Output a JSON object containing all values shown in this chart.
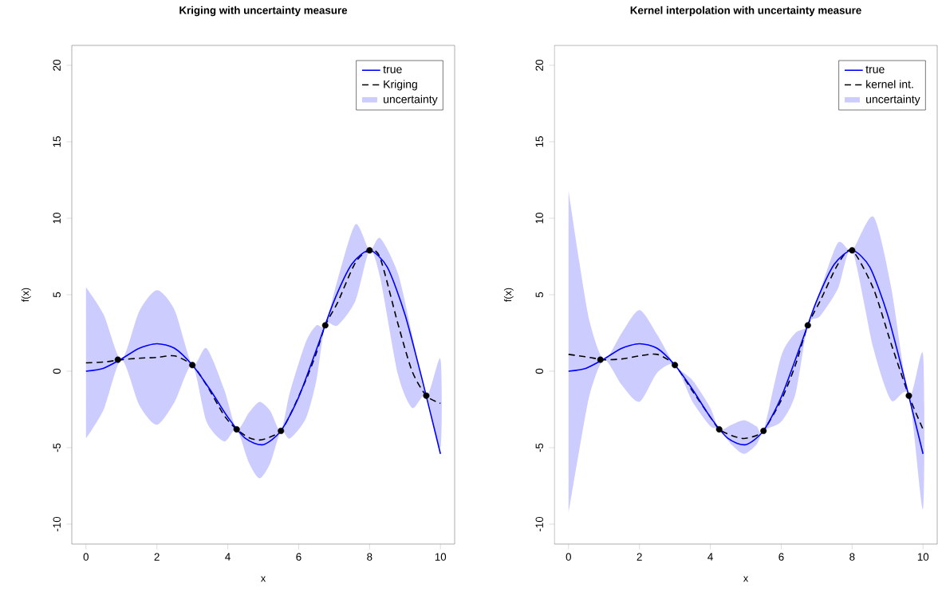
{
  "chart_data": [
    {
      "type": "line",
      "title": "Kriging with uncertainty measure",
      "xlabel": "x",
      "ylabel": "f(x)",
      "xlim": [
        -0.4,
        10.4
      ],
      "ylim": [
        -11.3,
        21.3
      ],
      "xticks": [
        0,
        2,
        4,
        6,
        8,
        10
      ],
      "yticks": [
        -10,
        -5,
        0,
        5,
        10,
        15,
        20
      ],
      "legend": "top right",
      "series": [
        {
          "name": "true",
          "type": "line",
          "color": "#0000ff",
          "line_style": "solid",
          "x": [
            0,
            0.5,
            1,
            1.5,
            2,
            2.5,
            3,
            3.5,
            4,
            4.5,
            5,
            5.5,
            6,
            6.5,
            7,
            7.5,
            8,
            8.5,
            9,
            9.5,
            10
          ],
          "values": [
            0,
            0.2,
            0.8,
            1.5,
            1.8,
            1.5,
            0.4,
            -1.2,
            -3.0,
            -4.4,
            -4.8,
            -3.9,
            -1.7,
            1.4,
            4.6,
            7.0,
            7.9,
            6.8,
            3.7,
            -0.7,
            -5.4
          ]
        },
        {
          "name": "Kriging",
          "type": "line",
          "color": "#000000",
          "line_style": "dashed",
          "x": [
            0,
            0.5,
            1,
            1.5,
            2,
            2.5,
            3,
            3.4,
            3.9,
            4.25,
            4.6,
            4.9,
            5.2,
            5.5,
            5.75,
            6.2,
            6.5,
            6.75,
            7.1,
            7.6,
            8,
            8.3,
            8.8,
            9.2,
            9.6,
            10
          ],
          "values": [
            0.55,
            0.6,
            0.75,
            0.85,
            0.9,
            1.0,
            0.4,
            -0.9,
            -2.9,
            -3.8,
            -4.35,
            -4.5,
            -4.3,
            -3.9,
            -2.9,
            -0.6,
            1.2,
            3.0,
            4.5,
            7.1,
            7.9,
            7.4,
            3.1,
            0.0,
            -1.6,
            -2.1
          ],
          "upper": [
            5.5,
            3.7,
            0.75,
            3.9,
            5.3,
            4.0,
            0.4,
            1.5,
            -1.2,
            -3.8,
            -2.7,
            -2.0,
            -2.6,
            -3.9,
            -1.4,
            1.9,
            3.0,
            3.0,
            6.0,
            9.6,
            7.9,
            8.7,
            6.4,
            2.4,
            -1.6,
            0.8
          ],
          "lower": [
            -4.4,
            -2.5,
            0.75,
            -2.2,
            -3.5,
            -2.0,
            0.4,
            -3.3,
            -4.6,
            -3.8,
            -6.0,
            -7.0,
            -6.0,
            -3.9,
            -4.4,
            -3.1,
            -0.6,
            3.0,
            3.0,
            4.6,
            7.9,
            6.1,
            -0.2,
            -2.4,
            -1.6,
            -5.0
          ]
        },
        {
          "name": "uncertainty",
          "type": "area",
          "color": "#ccccff"
        },
        {
          "type": "scatter",
          "color": "#000000",
          "marker": "circle",
          "x": [
            0.9,
            3,
            4.25,
            5.5,
            6.75,
            8,
            9.6
          ],
          "values": [
            0.75,
            0.4,
            -3.8,
            -3.9,
            3.0,
            7.9,
            -1.6
          ]
        }
      ]
    },
    {
      "type": "line",
      "title": "Kernel interpolation with uncertainty measure",
      "xlabel": "x",
      "ylabel": "f(x)",
      "xlim": [
        -0.4,
        10.4
      ],
      "ylim": [
        -11.3,
        21.3
      ],
      "xticks": [
        0,
        2,
        4,
        6,
        8,
        10
      ],
      "yticks": [
        -10,
        -5,
        0,
        5,
        10,
        15,
        20
      ],
      "legend": "top right",
      "series": [
        {
          "name": "true",
          "type": "line",
          "color": "#0000ff",
          "line_style": "solid",
          "x": [
            0,
            0.5,
            1,
            1.5,
            2,
            2.5,
            3,
            3.5,
            4,
            4.5,
            5,
            5.5,
            6,
            6.5,
            7,
            7.5,
            8,
            8.5,
            9,
            9.5,
            10
          ],
          "values": [
            0,
            0.2,
            0.8,
            1.5,
            1.8,
            1.5,
            0.4,
            -1.2,
            -3.0,
            -4.4,
            -4.8,
            -3.9,
            -1.7,
            1.4,
            4.6,
            7.0,
            7.9,
            6.8,
            3.7,
            -0.7,
            -5.4
          ]
        },
        {
          "name": "kernel int.",
          "type": "line",
          "color": "#000000",
          "line_style": "dashed",
          "x": [
            0,
            0.3,
            0.6,
            1,
            1.5,
            2,
            2.5,
            3,
            3.5,
            4,
            4.25,
            4.6,
            4.95,
            5.3,
            5.5,
            6,
            6.4,
            6.75,
            7.1,
            7.6,
            8,
            8.6,
            9.1,
            9.6,
            10
          ],
          "values": [
            1.1,
            1.0,
            0.9,
            0.75,
            0.8,
            1.0,
            1.1,
            0.4,
            -1.3,
            -3.0,
            -3.8,
            -4.2,
            -4.4,
            -4.2,
            -3.9,
            -1.9,
            0.4,
            3.0,
            4.6,
            7.0,
            7.9,
            5.4,
            1.8,
            -1.6,
            -3.8
          ],
          "upper": [
            11.8,
            7.2,
            3.2,
            0.75,
            2.5,
            4.0,
            2.4,
            0.4,
            -0.6,
            -2.4,
            -3.8,
            -3.5,
            -3.2,
            -3.6,
            -3.9,
            1.0,
            2.5,
            3.0,
            5.3,
            8.4,
            7.9,
            10.1,
            5.5,
            -1.6,
            1.1
          ],
          "lower": [
            -9.3,
            -5.2,
            -1.5,
            0.75,
            -0.9,
            -2.0,
            -0.1,
            0.4,
            -2.0,
            -3.6,
            -3.8,
            -4.8,
            -5.4,
            -4.8,
            -3.9,
            -3.3,
            -1.5,
            3.0,
            3.6,
            5.4,
            7.9,
            1.5,
            -1.9,
            -1.6,
            -9.0
          ]
        },
        {
          "name": "uncertainty",
          "type": "area",
          "color": "#ccccff"
        },
        {
          "type": "scatter",
          "color": "#000000",
          "marker": "circle",
          "x": [
            0.9,
            3,
            4.25,
            5.5,
            6.75,
            8,
            9.6
          ],
          "values": [
            0.75,
            0.4,
            -3.8,
            -3.9,
            3.0,
            7.9,
            -1.6
          ]
        }
      ]
    }
  ]
}
